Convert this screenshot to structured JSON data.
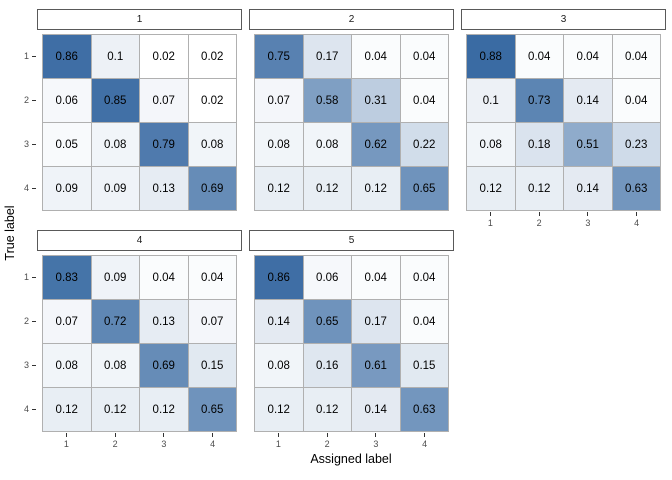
{
  "chart_data": {
    "type": "heatmap",
    "title": "",
    "xlabel": "Assigned label",
    "ylabel": "True label",
    "x_ticks": [
      "1",
      "2",
      "3",
      "4"
    ],
    "y_ticks": [
      "1",
      "2",
      "3",
      "4"
    ],
    "legend": "none",
    "grid": "off",
    "color_scale": {
      "low": "#ffffff",
      "high": "#3a6ba3",
      "domain": [
        0.02,
        0.88
      ]
    },
    "facets": [
      {
        "label": "1",
        "rows": [
          [
            "0.86",
            "0.1",
            "0.02",
            "0.02"
          ],
          [
            "0.06",
            "0.85",
            "0.07",
            "0.02"
          ],
          [
            "0.05",
            "0.08",
            "0.79",
            "0.08"
          ],
          [
            "0.09",
            "0.09",
            "0.13",
            "0.69"
          ]
        ]
      },
      {
        "label": "2",
        "rows": [
          [
            "0.75",
            "0.17",
            "0.04",
            "0.04"
          ],
          [
            "0.07",
            "0.58",
            "0.31",
            "0.04"
          ],
          [
            "0.08",
            "0.08",
            "0.62",
            "0.22"
          ],
          [
            "0.12",
            "0.12",
            "0.12",
            "0.65"
          ]
        ]
      },
      {
        "label": "3",
        "rows": [
          [
            "0.88",
            "0.04",
            "0.04",
            "0.04"
          ],
          [
            "0.1",
            "0.73",
            "0.14",
            "0.04"
          ],
          [
            "0.08",
            "0.18",
            "0.51",
            "0.23"
          ],
          [
            "0.12",
            "0.12",
            "0.14",
            "0.63"
          ]
        ]
      },
      {
        "label": "4",
        "rows": [
          [
            "0.83",
            "0.09",
            "0.04",
            "0.04"
          ],
          [
            "0.07",
            "0.72",
            "0.13",
            "0.07"
          ],
          [
            "0.08",
            "0.08",
            "0.69",
            "0.15"
          ],
          [
            "0.12",
            "0.12",
            "0.12",
            "0.65"
          ]
        ]
      },
      {
        "label": "5",
        "rows": [
          [
            "0.86",
            "0.06",
            "0.04",
            "0.04"
          ],
          [
            "0.14",
            "0.65",
            "0.17",
            "0.04"
          ],
          [
            "0.08",
            "0.16",
            "0.61",
            "0.15"
          ],
          [
            "0.12",
            "0.12",
            "0.14",
            "0.63"
          ]
        ]
      }
    ]
  }
}
